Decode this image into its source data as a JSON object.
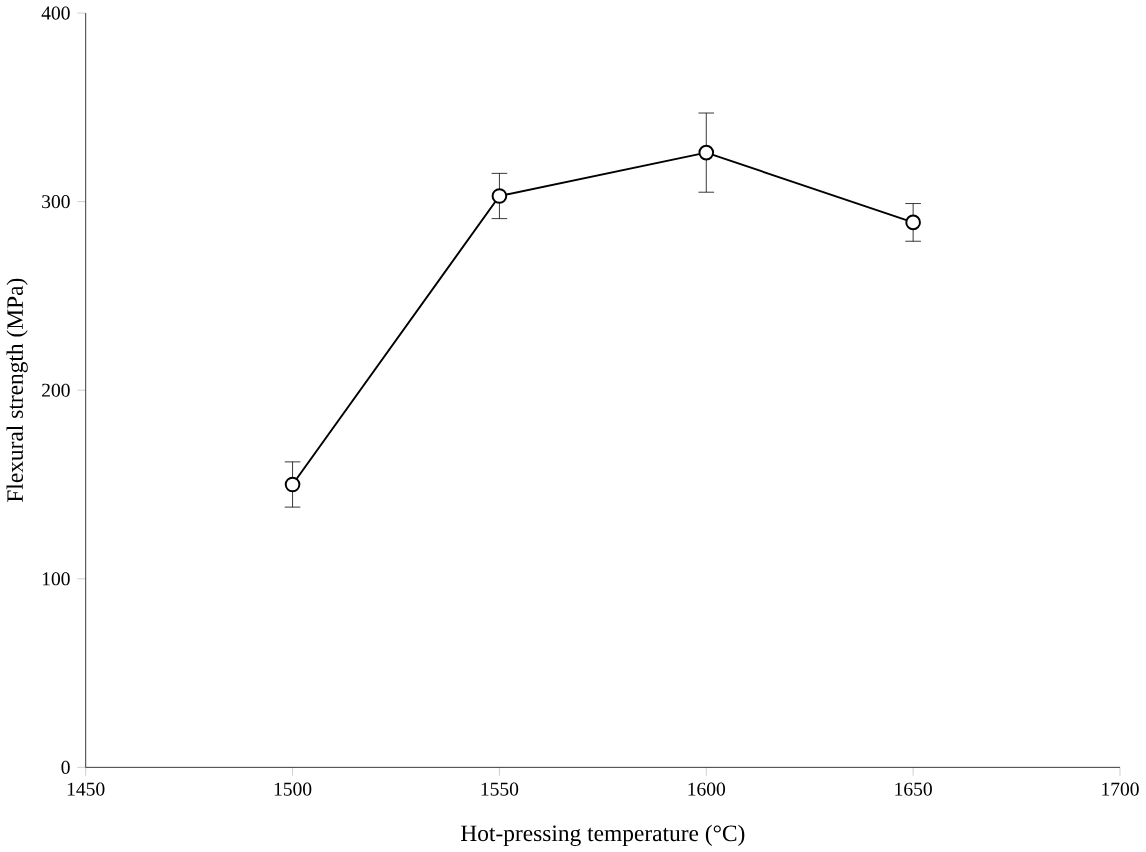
{
  "chart_data": {
    "type": "line",
    "xlabel": "Hot-pressing temperature (°C)",
    "ylabel": "Flexural strength (MPa)",
    "x": [
      1500,
      1550,
      1600,
      1650
    ],
    "series": [
      {
        "color": "#000000",
        "values": [
          150,
          303,
          326,
          289
        ],
        "errors": [
          12,
          12,
          21,
          10
        ]
      }
    ],
    "xlim": [
      1450,
      1700
    ],
    "xticks": [
      1450,
      1500,
      1550,
      1600,
      1650,
      1700
    ],
    "ylim": [
      0,
      400
    ],
    "yticks": [
      0,
      100,
      200,
      300,
      400
    ],
    "marker": "circle",
    "line_style": "solid"
  }
}
